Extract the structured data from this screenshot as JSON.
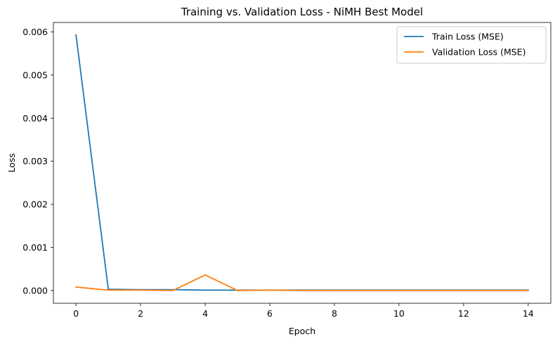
{
  "chart_data": {
    "type": "line",
    "title": "Training vs. Validation Loss - NiMH Best Model",
    "xlabel": "Epoch",
    "ylabel": "Loss",
    "x": [
      0,
      1,
      2,
      3,
      4,
      5,
      6,
      7,
      8,
      9,
      10,
      11,
      12,
      13,
      14
    ],
    "xlim": [
      -0.7,
      14.7
    ],
    "ylim": [
      -0.000296,
      0.00622
    ],
    "xticks": [
      0,
      2,
      4,
      6,
      8,
      10,
      12,
      14
    ],
    "xtick_labels": [
      "0",
      "2",
      "4",
      "6",
      "8",
      "10",
      "12",
      "14"
    ],
    "yticks": [
      0,
      0.001,
      0.002,
      0.003,
      0.004,
      0.005,
      0.006
    ],
    "ytick_labels": [
      "0.000",
      "0.001",
      "0.002",
      "0.003",
      "0.004",
      "0.005",
      "0.006"
    ],
    "grid": false,
    "legend_position": "top-right",
    "series": [
      {
        "name": "Train Loss (MSE)",
        "color": "#1f77b4",
        "values": [
          0.00593,
          3e-05,
          2e-05,
          2e-05,
          1e-05,
          1e-05,
          1e-05,
          1e-05,
          1e-05,
          1e-05,
          1e-05,
          1e-05,
          1e-05,
          1e-05,
          1e-05
        ]
      },
      {
        "name": "Validation Loss (MSE)",
        "color": "#ff7f0e",
        "values": [
          8e-05,
          1e-05,
          1e-05,
          0.0,
          0.00036,
          0.0,
          1e-05,
          0.0,
          0.0,
          0.0,
          0.0,
          0.0,
          0.0,
          0.0,
          0.0
        ]
      }
    ]
  }
}
